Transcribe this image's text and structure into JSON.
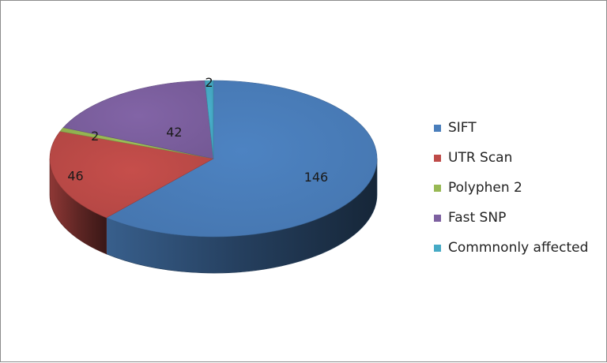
{
  "chart_data": {
    "type": "pie",
    "style": "3d",
    "legend_position": "right",
    "slices": [
      {
        "label": "SIFT",
        "value": 146,
        "color": "#4a7ebb"
      },
      {
        "label": "UTR Scan",
        "value": 46,
        "color": "#be4b48"
      },
      {
        "label": "Polyphen 2",
        "value": 2,
        "color": "#98b954"
      },
      {
        "label": "Fast SNP",
        "value": 42,
        "color": "#7d60a0"
      },
      {
        "label": "Commnonly affected",
        "value": 2,
        "color": "#46aac5"
      }
    ]
  }
}
